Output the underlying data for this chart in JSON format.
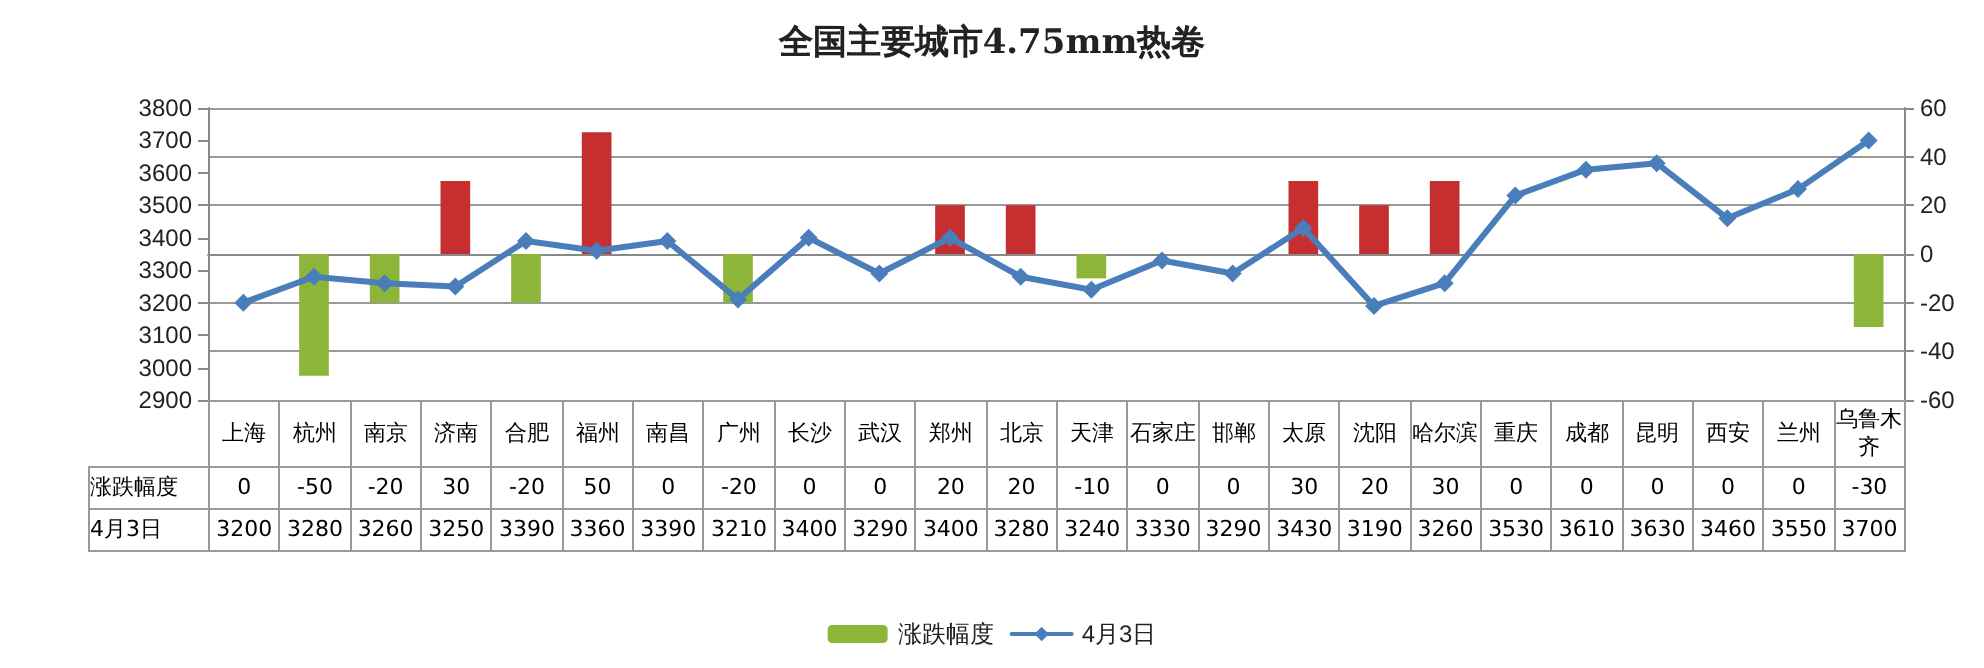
{
  "chart_data": {
    "type": "bar",
    "title": "全国主要城市4.75mm热卷",
    "categories": [
      "上海",
      "杭州",
      "南京",
      "济南",
      "合肥",
      "福州",
      "南昌",
      "广州",
      "长沙",
      "武汉",
      "郑州",
      "北京",
      "天津",
      "石家庄",
      "邯郸",
      "太原",
      "沈阳",
      "哈尔滨",
      "重庆",
      "成都",
      "昆明",
      "西安",
      "兰州",
      "乌鲁木齐"
    ],
    "series": [
      {
        "name": "涨跌幅度",
        "axis": "y2",
        "color": "#8db53a",
        "colors": [
          "#8db53a",
          "#8db53a",
          "#8db53a",
          "#c62f2f",
          "#8db53a",
          "#c62f2f",
          "#8db53a",
          "#8db53a",
          "#8db53a",
          "#8db53a",
          "#c62f2f",
          "#c62f2f",
          "#8db53a",
          "#8db53a",
          "#8db53a",
          "#c62f2f",
          "#c62f2f",
          "#c62f2f",
          "#8db53a",
          "#8db53a",
          "#8db53a",
          "#8db53a",
          "#8db53a",
          "#8db53a"
        ],
        "values": [
          0,
          -50,
          -20,
          30,
          -20,
          50,
          0,
          -20,
          0,
          0,
          20,
          20,
          -10,
          0,
          0,
          30,
          20,
          30,
          0,
          0,
          0,
          0,
          0,
          -30
        ]
      },
      {
        "name": "4月3日",
        "type": "line",
        "color": "#4a7ebb",
        "marker": "diamond",
        "values": [
          3200,
          3280,
          3260,
          3250,
          3390,
          3360,
          3390,
          3210,
          3400,
          3290,
          3400,
          3280,
          3240,
          3330,
          3290,
          3430,
          3190,
          3260,
          3530,
          3610,
          3630,
          3460,
          3550,
          3700
        ]
      }
    ],
    "ylim": [
      2900,
      3800
    ],
    "yticks": [
      2900,
      3000,
      3100,
      3200,
      3300,
      3400,
      3500,
      3600,
      3700,
      3800
    ],
    "y2lim": [
      -60,
      60
    ],
    "y2ticks": [
      -60,
      -40,
      -20,
      0,
      20,
      40,
      60
    ],
    "grid": "y",
    "legend": "bottom",
    "data_labels": true
  }
}
